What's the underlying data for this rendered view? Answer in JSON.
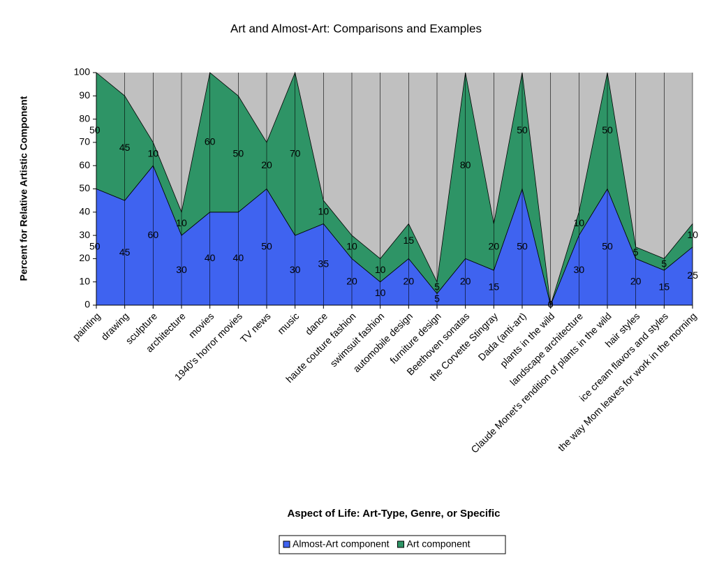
{
  "chart_data": {
    "type": "area",
    "stacked": true,
    "title": "Art and Almost-Art: Comparisons and Examples",
    "x_label": "Aspect of Life: Art-Type, Genre, or Specific",
    "y_label": "Percent for Relative Artistic Component",
    "categories": [
      "painting",
      "drawing",
      "sculpture",
      "architecture",
      "movies",
      "1940's horror movies",
      "TV news",
      "music",
      "dance",
      "haute couture fashion",
      "swimsuit fashion",
      "automobile design",
      "furniture design",
      "Beethoven sonatas",
      "the Corvette Stingray",
      "Dada (anti-art)",
      "plants in the wild",
      "landscape architecture",
      "Claude Monet's rendition of plants in the wild",
      "hair styles",
      "ice cream flavors and styles",
      "the way Mom leaves for work in the morning"
    ],
    "series": [
      {
        "name": "Almost-Art component",
        "color": "#3f63f0",
        "values": [
          50,
          45,
          60,
          30,
          40,
          40,
          50,
          30,
          35,
          20,
          10,
          20,
          5,
          20,
          15,
          50,
          0,
          30,
          50,
          20,
          15,
          25
        ]
      },
      {
        "name": "Art component",
        "color": "#2e9466",
        "values": [
          50,
          45,
          10,
          10,
          60,
          50,
          20,
          70,
          10,
          10,
          10,
          15,
          5,
          80,
          20,
          50,
          0,
          10,
          50,
          5,
          5,
          10
        ]
      }
    ],
    "ylim": [
      0,
      100
    ],
    "yticks": [
      0,
      10,
      20,
      30,
      40,
      50,
      60,
      70,
      80,
      90,
      100
    ],
    "grid": true,
    "plot_background": "#c0c0c0",
    "legend": "bottom",
    "data_labels": true
  }
}
